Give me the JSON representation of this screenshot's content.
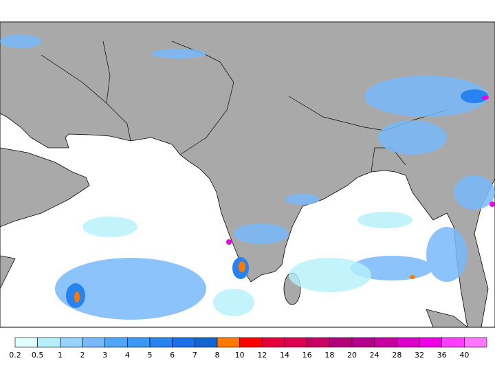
{
  "legend": {
    "labels": [
      "0.2",
      "0.5",
      "1",
      "2",
      "3",
      "4",
      "5",
      "6",
      "7",
      "8",
      "10",
      "12",
      "14",
      "16",
      "18",
      "20",
      "24",
      "28",
      "32",
      "36",
      "40"
    ],
    "colors": [
      "#e1fffe",
      "#b4f0fa",
      "#96d2fa",
      "#78b9fa",
      "#50a5f5",
      "#3c97f5",
      "#2882f0",
      "#1e6eeb",
      "#1464d2",
      "#ff7800",
      "#ff0000",
      "#e6003c",
      "#dc0050",
      "#c80064",
      "#b4007a",
      "#b4008c",
      "#c800a0",
      "#dc00c8",
      "#f000e6",
      "#ff3cff",
      "#ff78ff"
    ]
  }
}
